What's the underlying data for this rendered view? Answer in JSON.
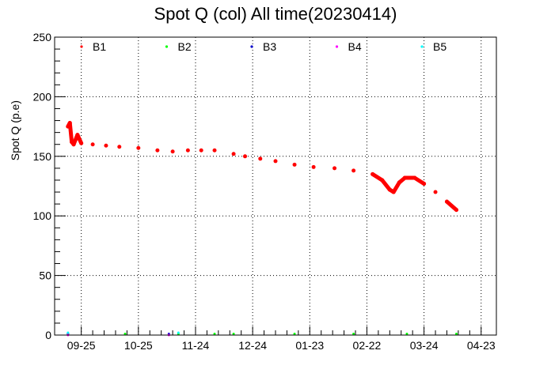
{
  "chart_data": {
    "type": "scatter",
    "title": "Spot Q (col) All time(20230414)",
    "xlabel": "",
    "ylabel": "Spot Q (p.e)",
    "ylim": [
      0,
      250
    ],
    "y_ticks": [
      0,
      50,
      100,
      150,
      200,
      250
    ],
    "xlim": [
      "2022-09-11",
      "2023-05-01"
    ],
    "x_ticks": [
      {
        "label": "09-25",
        "date": "2022-09-25"
      },
      {
        "label": "10-25",
        "date": "2022-10-25"
      },
      {
        "label": "11-24",
        "date": "2022-11-24"
      },
      {
        "label": "12-24",
        "date": "2022-12-24"
      },
      {
        "label": "01-23",
        "date": "2023-01-23"
      },
      {
        "label": "02-22",
        "date": "2023-02-22"
      },
      {
        "label": "03-24",
        "date": "2023-03-24"
      },
      {
        "label": "04-23",
        "date": "2023-04-23"
      }
    ],
    "grid": true,
    "legend_position": "top",
    "series": [
      {
        "name": "B1",
        "color": "#ff0000",
        "points": [
          [
            "2022-09-18",
            175
          ],
          [
            "2022-09-19",
            178
          ],
          [
            "2022-09-20",
            162
          ],
          [
            "2022-09-21",
            160
          ],
          [
            "2022-09-23",
            168
          ],
          [
            "2022-09-25",
            161
          ],
          [
            "2022-10-01",
            160
          ],
          [
            "2022-10-08",
            159
          ],
          [
            "2022-10-15",
            158
          ],
          [
            "2022-10-25",
            157
          ],
          [
            "2022-11-04",
            155
          ],
          [
            "2022-11-12",
            154
          ],
          [
            "2022-11-20",
            155
          ],
          [
            "2022-11-27",
            155
          ],
          [
            "2022-12-04",
            155
          ],
          [
            "2022-12-14",
            152
          ],
          [
            "2022-12-20",
            150
          ],
          [
            "2022-12-28",
            148
          ],
          [
            "2023-01-05",
            146
          ],
          [
            "2023-01-15",
            143
          ],
          [
            "2023-01-25",
            141
          ],
          [
            "2023-02-05",
            140
          ],
          [
            "2023-02-15",
            138
          ],
          [
            "2023-02-25",
            135
          ],
          [
            "2023-03-02",
            130
          ],
          [
            "2023-03-06",
            122
          ],
          [
            "2023-03-08",
            120
          ],
          [
            "2023-03-11",
            128
          ],
          [
            "2023-03-14",
            132
          ],
          [
            "2023-03-19",
            132
          ],
          [
            "2023-03-24",
            127
          ],
          [
            "2023-03-30",
            120
          ],
          [
            "2023-04-05",
            112
          ],
          [
            "2023-04-10",
            105
          ]
        ]
      },
      {
        "name": "B2",
        "color": "#00ff00",
        "points": [
          [
            "2022-09-18",
            1
          ],
          [
            "2022-10-18",
            1
          ],
          [
            "2022-11-15",
            1
          ],
          [
            "2022-12-04",
            1
          ],
          [
            "2022-12-14",
            1
          ],
          [
            "2023-01-15",
            1
          ],
          [
            "2023-02-15",
            1
          ],
          [
            "2023-03-15",
            1
          ],
          [
            "2023-04-10",
            1
          ]
        ]
      },
      {
        "name": "B3",
        "color": "#0000cc",
        "points": [
          [
            "2022-09-18",
            1
          ],
          [
            "2022-11-10",
            1
          ]
        ]
      },
      {
        "name": "B4",
        "color": "#ff00ff",
        "points": [
          [
            "2022-09-18",
            0
          ],
          [
            "2022-11-10",
            0
          ]
        ]
      },
      {
        "name": "B5",
        "color": "#00ffff",
        "points": [
          [
            "2022-09-18",
            2
          ],
          [
            "2022-11-15",
            2
          ]
        ]
      }
    ]
  }
}
